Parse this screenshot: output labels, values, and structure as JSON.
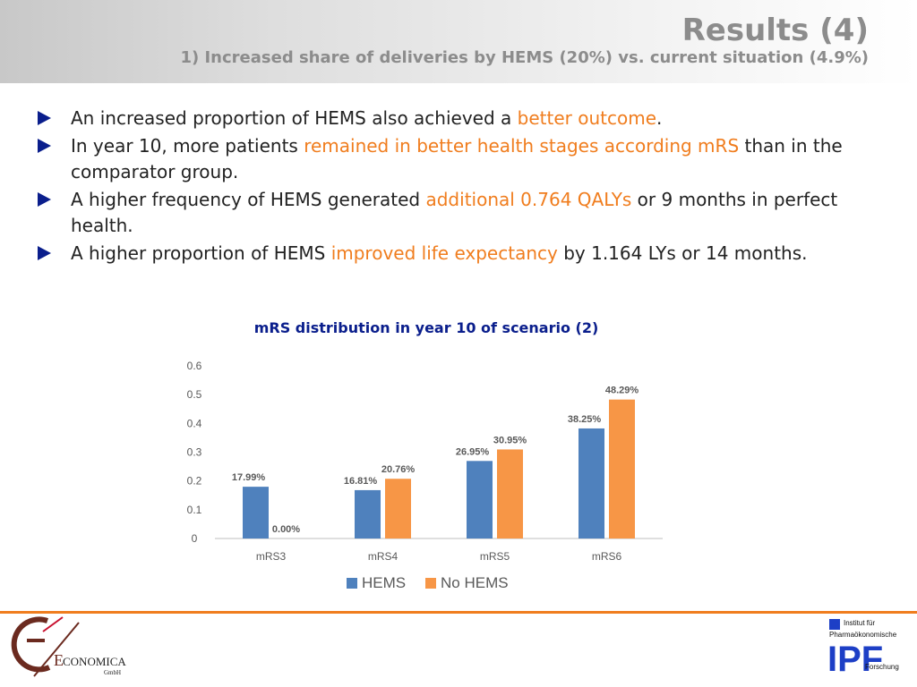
{
  "header": {
    "title": "Results (4)",
    "subtitle": "1) Increased share of deliveries by HEMS (20%) vs. current situation (4.9%)"
  },
  "bullets": [
    {
      "parts": [
        {
          "text": "An increased proportion of HEMS also achieved a ",
          "hl": false
        },
        {
          "text": "better outcome",
          "hl": true
        },
        {
          "text": ".",
          "hl": false
        }
      ]
    },
    {
      "parts": [
        {
          "text": "In year 10, more patients ",
          "hl": false
        },
        {
          "text": "remained in better health stages according mRS",
          "hl": true
        },
        {
          "text": " than in the comparator group.",
          "hl": false
        }
      ]
    },
    {
      "parts": [
        {
          "text": "A higher frequency of HEMS generated ",
          "hl": false
        },
        {
          "text": "additional 0.764 QALYs",
          "hl": true
        },
        {
          "text": " or 9 months in perfect health.",
          "hl": false
        }
      ]
    },
    {
      "parts": [
        {
          "text": "A higher proportion of HEMS ",
          "hl": false
        },
        {
          "text": "improved life expectancy",
          "hl": true
        },
        {
          "text": " by 1.164 LYs or 14 months.",
          "hl": false
        }
      ]
    }
  ],
  "colors": {
    "accent_orange": "#f07d1e",
    "bullet_blue": "#0a1e8c",
    "series_hems": "#4f81bd",
    "series_no_hems": "#f79646"
  },
  "chart_data": {
    "type": "bar",
    "title": "mRS distribution in year 10 of scenario (2)",
    "categories": [
      "mRS3",
      "mRS4",
      "mRS5",
      "mRS6"
    ],
    "series": [
      {
        "name": "HEMS",
        "values": [
          0.1799,
          0.1681,
          0.2695,
          0.3825
        ],
        "labels": [
          "17.99%",
          "16.81%",
          "26.95%",
          "38.25%"
        ]
      },
      {
        "name": "No HEMS",
        "values": [
          0.0,
          0.2076,
          0.3095,
          0.4829
        ],
        "labels": [
          "0.00%",
          "20.76%",
          "30.95%",
          "48.29%"
        ]
      }
    ],
    "yticks": [
      "0",
      "0.1",
      "0.2",
      "0.3",
      "0.4",
      "0.5",
      "0.6"
    ],
    "ylim": [
      0,
      0.6
    ],
    "grid": false,
    "legend": "bottom"
  },
  "logos": {
    "left": {
      "brand": "CONOMICA",
      "initial": "E",
      "sub": "GmbH"
    },
    "right": {
      "line1": "Institut für",
      "line2": "Pharmaökonomische",
      "line3": "Forschung",
      "mark": "IPF"
    }
  }
}
